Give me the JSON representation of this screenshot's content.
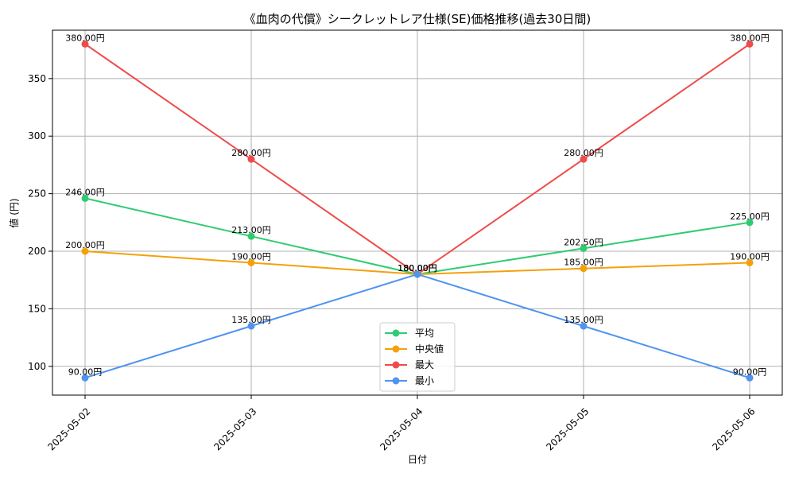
{
  "chart_data": {
    "type": "line",
    "title": "《血肉の代償》シークレットレア仕様(SE)価格推移(過去30日間)",
    "xlabel": "日付",
    "ylabel": "値 (円)",
    "categories": [
      "2025-05-02",
      "2025-05-03",
      "2025-05-04",
      "2025-05-05",
      "2025-05-06"
    ],
    "ylim": [
      75,
      392
    ],
    "yticks": [
      100,
      150,
      200,
      250,
      300,
      350
    ],
    "grid": true,
    "legend_position": "bottom-center",
    "series": [
      {
        "name": "平均",
        "color": "#2ecc71",
        "values": [
          246,
          213,
          180,
          202.5,
          225
        ],
        "labels": [
          "246.00円",
          "213.00円",
          "180.00円",
          "202.50円",
          "225.00円"
        ]
      },
      {
        "name": "中央値",
        "color": "#f5a00a",
        "values": [
          200,
          190,
          180,
          185,
          190
        ],
        "labels": [
          "200.00円",
          "190.00円",
          "180.00円",
          "185.00円",
          "190.00円"
        ]
      },
      {
        "name": "最大",
        "color": "#ef4b4b",
        "values": [
          380,
          280,
          180,
          280,
          380
        ],
        "labels": [
          "380.00円",
          "280.00円",
          "180.00円",
          "280.00円",
          "380.00円"
        ]
      },
      {
        "name": "最小",
        "color": "#4f94f0",
        "values": [
          90,
          135,
          180,
          135,
          90
        ],
        "labels": [
          "90.00円",
          "135.00円",
          "180.00円",
          "135.00円",
          "90.00円"
        ]
      }
    ]
  }
}
